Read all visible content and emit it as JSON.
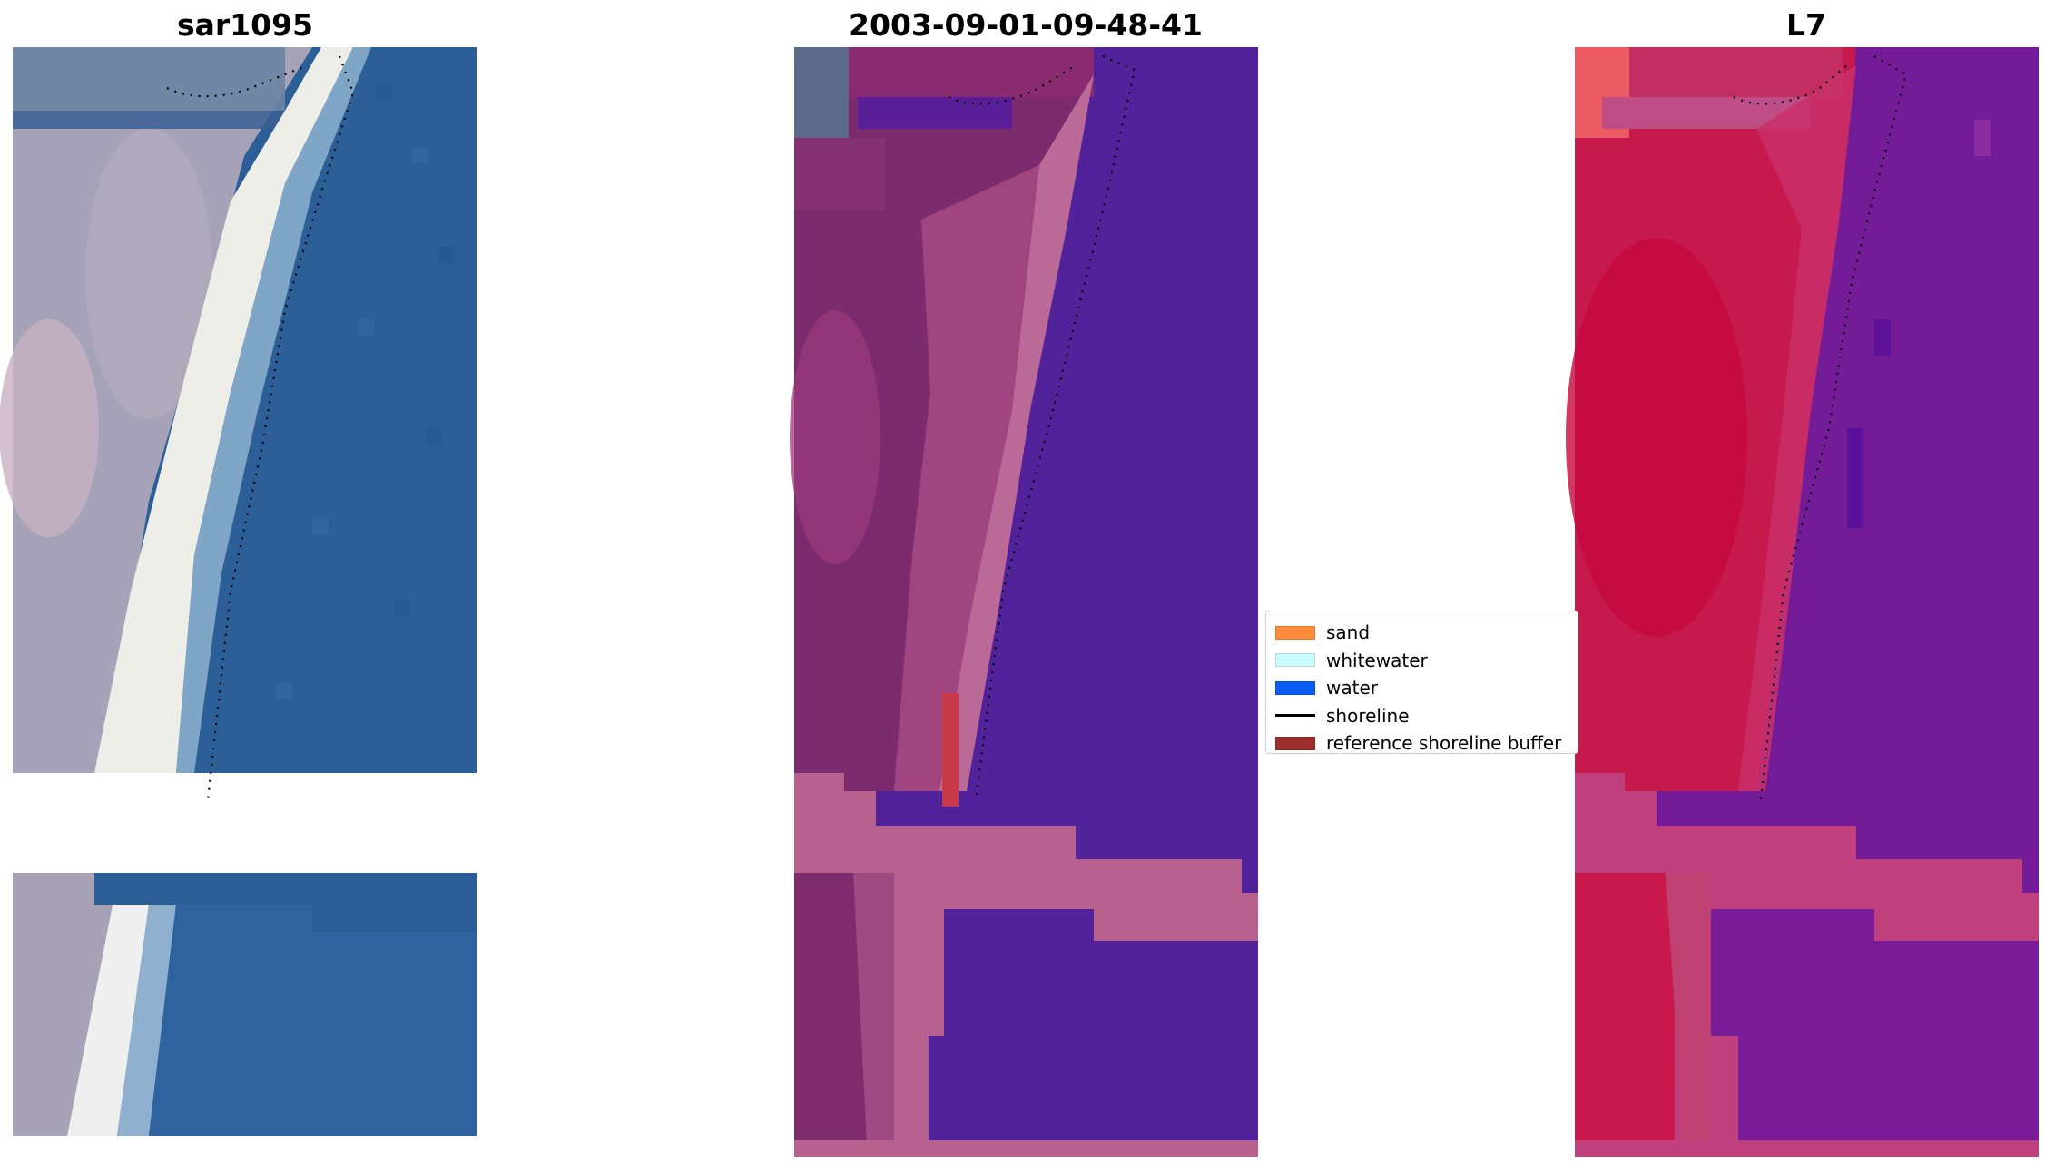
{
  "titles": {
    "left": "sar1095",
    "center": "2003-09-01-09-48-41",
    "right": "L7"
  },
  "panels": {
    "left": {
      "name": "rgb-image",
      "palette": [
        "#2a5a94",
        "#3a6fa8",
        "#b8b2c8",
        "#f2f2ee",
        "#8a8ea8"
      ]
    },
    "center": {
      "name": "classified-image",
      "palette": [
        "#52229a",
        "#7a2a6a",
        "#b8608e",
        "#c0507a"
      ]
    },
    "right": {
      "name": "ndwi-image",
      "palette": [
        "#6a1c98",
        "#c81848",
        "#c0407e",
        "#e84a58"
      ]
    }
  },
  "legend": {
    "items": [
      {
        "label": "sand",
        "color": "#ff8c3a",
        "kind": "patch"
      },
      {
        "label": "whitewater",
        "color": "#c8fcfc",
        "kind": "patch"
      },
      {
        "label": "water",
        "color": "#0a5cf0",
        "kind": "patch"
      },
      {
        "label": "shoreline",
        "color": "#000000",
        "kind": "line"
      },
      {
        "label": "reference shoreline buffer",
        "color": "#9c2e2e",
        "kind": "patch"
      }
    ]
  }
}
